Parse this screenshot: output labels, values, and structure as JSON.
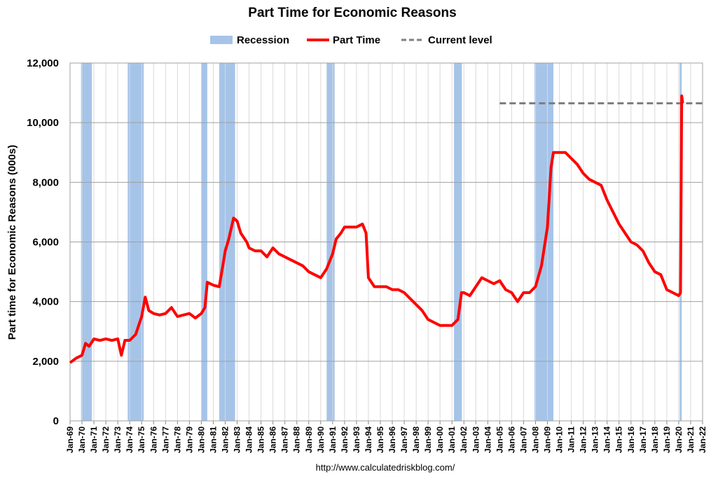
{
  "chart_data": {
    "type": "line",
    "title": "Part Time for Economic Reasons",
    "ylabel": "Part time for Economic Reasons (000s)",
    "source": "http://www.calculatedriskblog.com/",
    "xlim": [
      1969,
      2022
    ],
    "ylim": [
      0,
      12000
    ],
    "yticks": [
      0,
      {
        "value": 2000,
        "label": "2,000"
      },
      {
        "value": 4000,
        "label": "4,000"
      },
      {
        "value": 6000,
        "label": "6,000"
      },
      {
        "value": 8000,
        "label": "8,000"
      },
      {
        "value": 10000,
        "label": "10,000"
      },
      {
        "value": 12000,
        "label": "12,000"
      }
    ],
    "xticks": [
      {
        "value": 1969,
        "label": "Jan-69"
      },
      {
        "value": 1970,
        "label": "Jan-70"
      },
      {
        "value": 1971,
        "label": "Jan-71"
      },
      {
        "value": 1972,
        "label": "Jan-72"
      },
      {
        "value": 1973,
        "label": "Jan-73"
      },
      {
        "value": 1974,
        "label": "Jan-74"
      },
      {
        "value": 1975,
        "label": "Jan-75"
      },
      {
        "value": 1976,
        "label": "Jan-76"
      },
      {
        "value": 1977,
        "label": "Jan-77"
      },
      {
        "value": 1978,
        "label": "Jan-78"
      },
      {
        "value": 1979,
        "label": "Jan-79"
      },
      {
        "value": 1980,
        "label": "Jan-80"
      },
      {
        "value": 1981,
        "label": "Jan-81"
      },
      {
        "value": 1982,
        "label": "Jan-82"
      },
      {
        "value": 1983,
        "label": "Jan-83"
      },
      {
        "value": 1984,
        "label": "Jan-84"
      },
      {
        "value": 1985,
        "label": "Jan-85"
      },
      {
        "value": 1986,
        "label": "Jan-86"
      },
      {
        "value": 1987,
        "label": "Jan-87"
      },
      {
        "value": 1988,
        "label": "Jan-88"
      },
      {
        "value": 1989,
        "label": "Jan-89"
      },
      {
        "value": 1990,
        "label": "Jan-90"
      },
      {
        "value": 1991,
        "label": "Jan-91"
      },
      {
        "value": 1992,
        "label": "Jan-92"
      },
      {
        "value": 1993,
        "label": "Jan-93"
      },
      {
        "value": 1994,
        "label": "Jan-94"
      },
      {
        "value": 1995,
        "label": "Jan-95"
      },
      {
        "value": 1996,
        "label": "Jan-96"
      },
      {
        "value": 1997,
        "label": "Jan-97"
      },
      {
        "value": 1998,
        "label": "Jan-98"
      },
      {
        "value": 1999,
        "label": "Jan-99"
      },
      {
        "value": 2000,
        "label": "Jan-00"
      },
      {
        "value": 2001,
        "label": "Jan-01"
      },
      {
        "value": 2002,
        "label": "Jan-02"
      },
      {
        "value": 2003,
        "label": "Jan-03"
      },
      {
        "value": 2004,
        "label": "Jan-04"
      },
      {
        "value": 2005,
        "label": "Jan-05"
      },
      {
        "value": 2006,
        "label": "Jan-06"
      },
      {
        "value": 2007,
        "label": "Jan-07"
      },
      {
        "value": 2008,
        "label": "Jan-08"
      },
      {
        "value": 2009,
        "label": "Jan-09"
      },
      {
        "value": 2010,
        "label": "Jan-10"
      },
      {
        "value": 2011,
        "label": "Jan-11"
      },
      {
        "value": 2012,
        "label": "Jan-12"
      },
      {
        "value": 2013,
        "label": "Jan-13"
      },
      {
        "value": 2014,
        "label": "Jan-14"
      },
      {
        "value": 2015,
        "label": "Jan-15"
      },
      {
        "value": 2016,
        "label": "Jan-16"
      },
      {
        "value": 2017,
        "label": "Jan-17"
      },
      {
        "value": 2018,
        "label": "Jan-18"
      },
      {
        "value": 2019,
        "label": "Jan-19"
      },
      {
        "value": 2020,
        "label": "Jan-20"
      },
      {
        "value": 2021,
        "label": "Jan-21"
      },
      {
        "value": 2022,
        "label": "Jan-22"
      }
    ],
    "grid": true,
    "recessions": {
      "name": "Recession",
      "color": "#a6c4e8",
      "periods": [
        [
          1969.92,
          1970.83
        ],
        [
          1973.83,
          1975.17
        ],
        [
          1980.0,
          1980.5
        ],
        [
          1981.5,
          1982.83
        ],
        [
          1990.5,
          1991.17
        ],
        [
          2001.17,
          2001.83
        ],
        [
          2007.92,
          2009.5
        ],
        [
          2020.08,
          2020.25
        ]
      ]
    },
    "current_level": {
      "name": "Current level",
      "color": "#7f7f7f",
      "value": 10650,
      "x_start": 2005
    },
    "series": [
      {
        "name": "Part Time",
        "color": "#ff0000",
        "x": [
          1969.0,
          1969.5,
          1970.0,
          1970.3,
          1970.6,
          1971.0,
          1971.5,
          1972.0,
          1972.5,
          1973.0,
          1973.3,
          1973.6,
          1974.0,
          1974.5,
          1975.0,
          1975.3,
          1975.6,
          1976.0,
          1976.5,
          1977.0,
          1977.5,
          1978.0,
          1978.5,
          1979.0,
          1979.5,
          1980.0,
          1980.3,
          1980.5,
          1981.0,
          1981.5,
          1981.8,
          1982.0,
          1982.3,
          1982.7,
          1983.0,
          1983.3,
          1983.8,
          1984.0,
          1984.5,
          1985.0,
          1985.5,
          1986.0,
          1986.5,
          1987.0,
          1987.5,
          1988.0,
          1988.5,
          1989.0,
          1989.5,
          1990.0,
          1990.5,
          1991.0,
          1991.3,
          1991.7,
          1992.0,
          1992.5,
          1993.0,
          1993.5,
          1993.8,
          1994.0,
          1994.5,
          1995.0,
          1995.5,
          1996.0,
          1996.5,
          1997.0,
          1997.5,
          1998.0,
          1998.5,
          1999.0,
          1999.5,
          2000.0,
          2000.5,
          2001.0,
          2001.5,
          2001.8,
          2002.0,
          2002.5,
          2003.0,
          2003.5,
          2004.0,
          2004.5,
          2005.0,
          2005.5,
          2006.0,
          2006.5,
          2007.0,
          2007.5,
          2008.0,
          2008.5,
          2009.0,
          2009.3,
          2009.5,
          2010.0,
          2010.5,
          2011.0,
          2011.5,
          2012.0,
          2012.5,
          2013.0,
          2013.5,
          2014.0,
          2014.5,
          2015.0,
          2015.5,
          2016.0,
          2016.5,
          2017.0,
          2017.5,
          2018.0,
          2018.5,
          2019.0,
          2019.5,
          2020.0,
          2020.15,
          2020.25,
          2020.33
        ],
        "values": [
          1950,
          2100,
          2200,
          2600,
          2500,
          2750,
          2700,
          2750,
          2700,
          2750,
          2200,
          2700,
          2700,
          2900,
          3500,
          4150,
          3700,
          3600,
          3550,
          3600,
          3800,
          3500,
          3550,
          3600,
          3450,
          3600,
          3800,
          4650,
          4550,
          4500,
          5200,
          5700,
          6100,
          6800,
          6700,
          6300,
          6000,
          5800,
          5700,
          5700,
          5500,
          5800,
          5600,
          5500,
          5400,
          5300,
          5200,
          5000,
          4900,
          4800,
          5100,
          5600,
          6100,
          6300,
          6500,
          6500,
          6500,
          6600,
          6300,
          4800,
          4500,
          4500,
          4500,
          4400,
          4400,
          4300,
          4100,
          3900,
          3700,
          3400,
          3300,
          3200,
          3200,
          3200,
          3400,
          4300,
          4300,
          4200,
          4500,
          4800,
          4700,
          4600,
          4700,
          4400,
          4300,
          4000,
          4300,
          4300,
          4500,
          5200,
          6500,
          8500,
          9000,
          9000,
          9000,
          8800,
          8600,
          8300,
          8100,
          8000,
          7900,
          7400,
          7000,
          6600,
          6300,
          6000,
          5900,
          5700,
          5300,
          5000,
          4900,
          4400,
          4300,
          4200,
          4300,
          10900,
          10650
        ]
      }
    ]
  }
}
